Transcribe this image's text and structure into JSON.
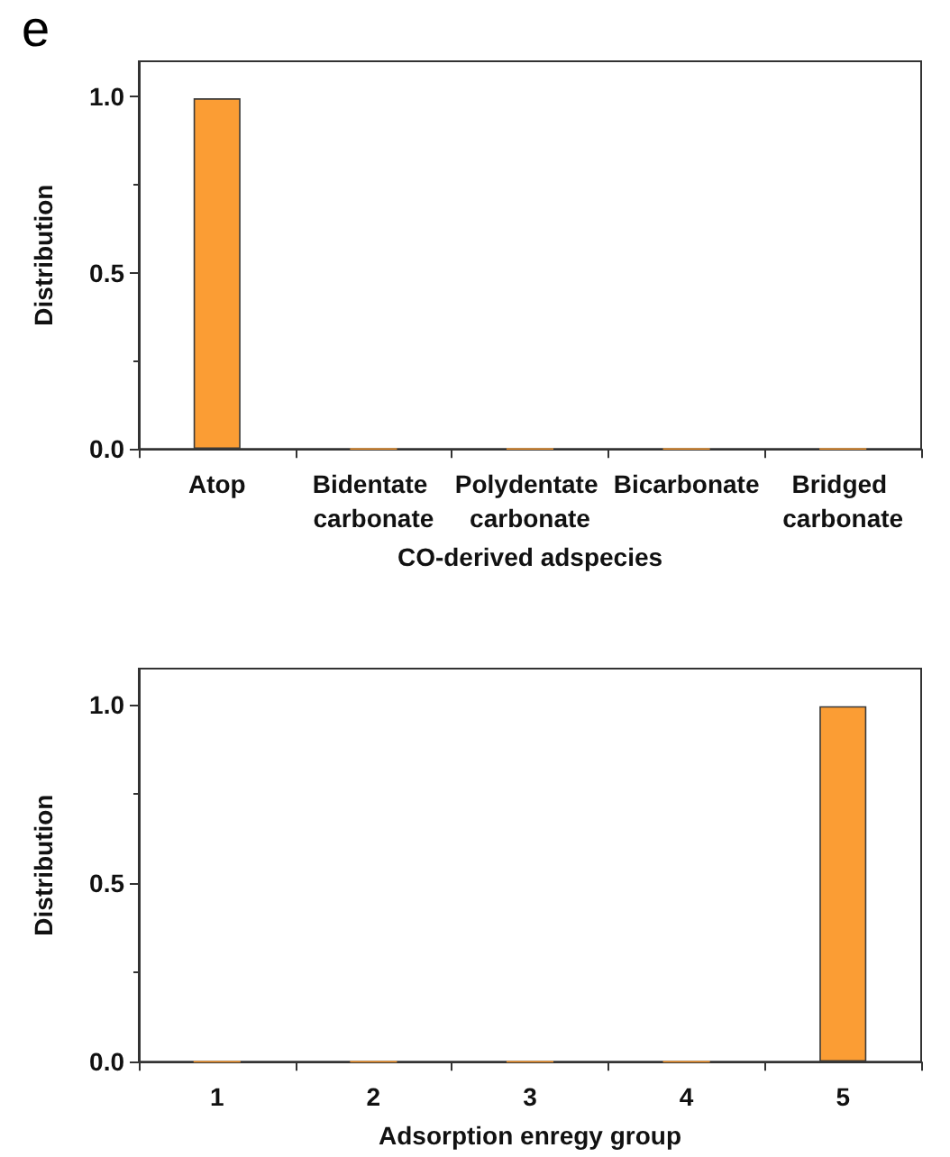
{
  "chart_data": [
    {
      "type": "bar",
      "annotations": [
        "e"
      ],
      "xlabel": "CO-derived adspecies",
      "ylabel": "Distribution",
      "categories": [
        "Atop",
        "Bidentate carbonate",
        "Polydentate carbonate",
        "Bicarbonate",
        "Bridged carbonate"
      ],
      "values": [
        0.995,
        0,
        0,
        0,
        0
      ],
      "color": "#fb9d34",
      "ylim": [
        0,
        1.1
      ],
      "yticks": [
        {
          "value": 0,
          "label": "0.0"
        },
        {
          "value": 0.5,
          "label": "0.5"
        },
        {
          "value": 1,
          "label": "1.0"
        }
      ],
      "grid": false
    },
    {
      "type": "bar",
      "xlabel": "Adsorption enregy group",
      "ylabel": "Distribution",
      "categories": [
        "1",
        "2",
        "3",
        "4",
        "5"
      ],
      "values": [
        0,
        0,
        0,
        0,
        0.995
      ],
      "color": "#fb9d34",
      "ylim": [
        0,
        1.1
      ],
      "yticks": [
        {
          "value": 0,
          "label": "0.0"
        },
        {
          "value": 0.5,
          "label": "0.5"
        },
        {
          "value": 1,
          "label": "1.0"
        }
      ],
      "grid": false
    }
  ]
}
